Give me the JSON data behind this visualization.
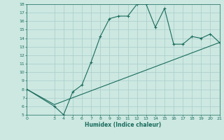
{
  "xlabel": "Humidex (Indice chaleur)",
  "bg_color": "#cce8e0",
  "line_color": "#1a6b5e",
  "grid_color": "#aacccc",
  "line1_x": [
    0,
    3,
    4,
    5,
    6,
    7,
    8,
    9,
    10,
    11,
    12,
    13,
    14,
    15,
    16,
    17,
    18,
    19,
    20,
    21
  ],
  "line1_y": [
    8,
    6,
    5,
    7.7,
    8.5,
    11.2,
    14.2,
    16.3,
    16.6,
    16.6,
    18.0,
    18.0,
    15.3,
    17.5,
    13.3,
    13.3,
    14.2,
    14.0,
    14.5,
    13.5
  ],
  "line2_x": [
    0,
    3,
    21
  ],
  "line2_y": [
    8,
    6.2,
    13.5
  ],
  "xmin": 0,
  "xmax": 21,
  "ymin": 5,
  "ymax": 18,
  "xticks": [
    0,
    3,
    4,
    5,
    6,
    7,
    8,
    9,
    10,
    11,
    12,
    13,
    14,
    15,
    16,
    17,
    18,
    19,
    20,
    21
  ],
  "yticks": [
    5,
    6,
    7,
    8,
    9,
    10,
    11,
    12,
    13,
    14,
    15,
    16,
    17,
    18
  ]
}
